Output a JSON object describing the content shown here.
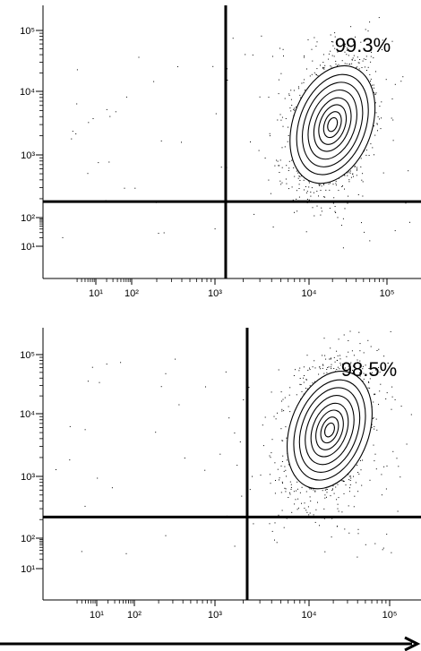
{
  "chart_data": [
    {
      "type": "scatter",
      "subtype": "flow-cytometry-contour",
      "x_scale": "log",
      "y_scale": "log",
      "x_ticks": [
        "10¹",
        "10²",
        "10³",
        "10⁴",
        "10⁵"
      ],
      "y_ticks": [
        "10¹",
        "10²",
        "10³",
        "10⁴",
        "10⁵"
      ],
      "x_tick_values": [
        10,
        100,
        1000,
        10000,
        100000
      ],
      "y_tick_values": [
        10,
        100,
        1000,
        10000,
        100000
      ],
      "gate": {
        "x": 1300,
        "y": 180
      },
      "quadrant_percent": {
        "upper_right": "99.3%"
      },
      "population_center": {
        "x": 20000,
        "y": 3000
      },
      "grid": false
    },
    {
      "type": "scatter",
      "subtype": "flow-cytometry-contour",
      "x_scale": "log",
      "y_scale": "log",
      "x_ticks": [
        "10¹",
        "10²",
        "10³",
        "10⁴",
        "10⁵"
      ],
      "y_ticks": [
        "10¹",
        "10²",
        "10³",
        "10⁴",
        "10⁵"
      ],
      "x_tick_values": [
        10,
        100,
        1000,
        10000,
        100000
      ],
      "y_tick_values": [
        10,
        100,
        1000,
        10000,
        100000
      ],
      "gate": {
        "x": 2200,
        "y": 220
      },
      "quadrant_percent": {
        "upper_right": "98.5%"
      },
      "population_center": {
        "x": 18000,
        "y": 5500
      },
      "grid": false
    }
  ]
}
